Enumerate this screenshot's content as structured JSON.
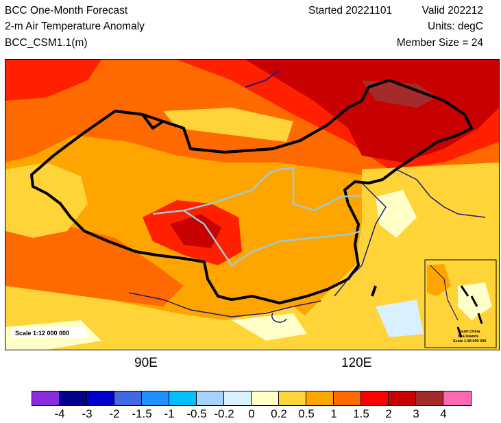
{
  "header": {
    "title": "BCC One-Month Forecast",
    "variable": "2-m Air Temperature Anomaly",
    "model": "BCC_CSM1.1(m)",
    "started": "Started 20221101",
    "valid": "Valid 202212",
    "units": "Units: degC",
    "member_size": "Member Size = 24"
  },
  "map": {
    "scale_label": "Scale 1:12 000 000",
    "inset_label_1": "South China",
    "inset_label_2": "Sea Islands",
    "inset_scale": "Scale 1:38 000 000",
    "lon_labels": [
      "90E",
      "120E"
    ]
  },
  "colorbar": {
    "colors": [
      "#8a2be2",
      "#00008b",
      "#0000cd",
      "#4169e1",
      "#1e90ff",
      "#00bfff",
      "#a4d3ff",
      "#d8f0ff",
      "#ffffc8",
      "#ffd438",
      "#ffa500",
      "#ff6a00",
      "#ff0000",
      "#c80000",
      "#a52a2a",
      "#ff69b4"
    ],
    "labels": [
      "-4",
      "-3",
      "-2",
      "-1.5",
      "-1",
      "-0.5",
      "-0.2",
      "0",
      "0.2",
      "0.5",
      "1",
      "1.5",
      "2",
      "3",
      "4"
    ]
  }
}
